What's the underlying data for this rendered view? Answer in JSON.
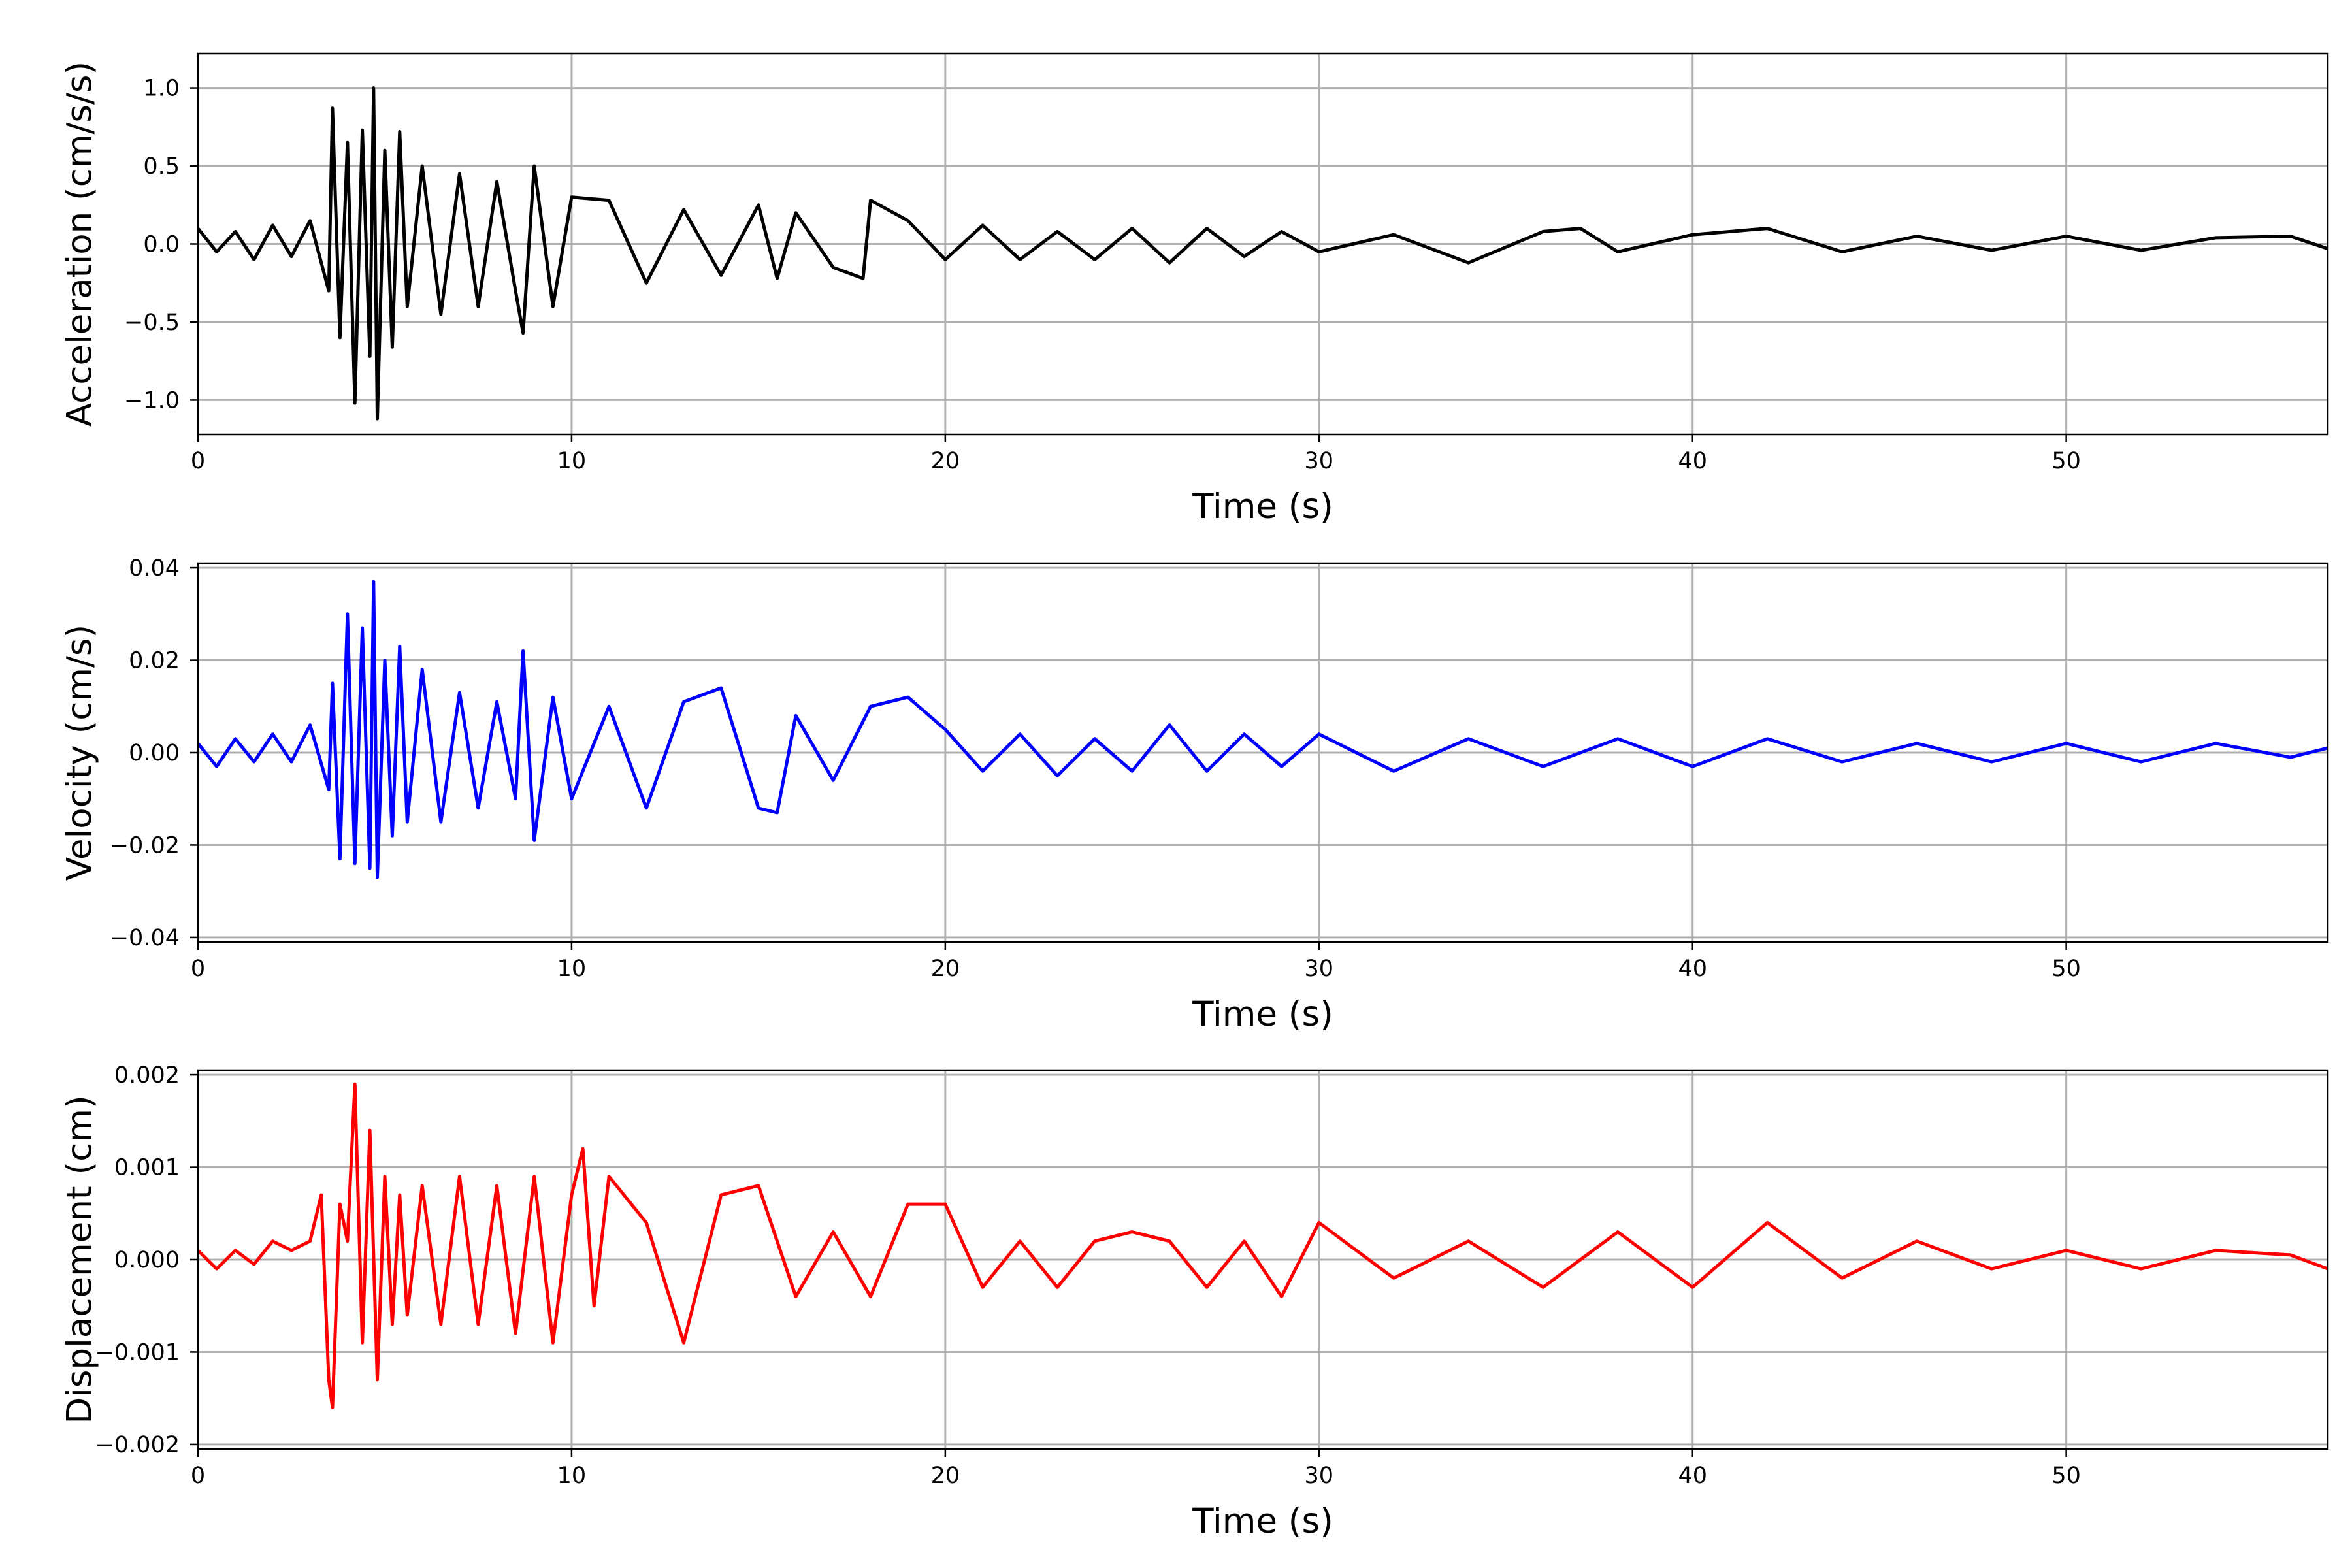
{
  "chart_data": [
    {
      "type": "line",
      "title": "",
      "xlabel": "Time (s)",
      "ylabel": "Acceleration (cm/s/s)",
      "xlim": [
        0,
        57
      ],
      "ylim": [
        -1.22,
        1.22
      ],
      "xticks": [
        0,
        10,
        20,
        30,
        40,
        50
      ],
      "xtick_labels": [
        "0",
        "10",
        "20",
        "30",
        "40",
        "50"
      ],
      "yticks": [
        -1.0,
        -0.5,
        0.0,
        0.5,
        1.0
      ],
      "ytick_labels": [
        "−1.0",
        "−0.5",
        "0.0",
        "0.5",
        "1.0"
      ],
      "grid": true,
      "color": "#000000",
      "series": [
        {
          "x": [
            0,
            0.5,
            1,
            1.5,
            2,
            2.5,
            3,
            3.5,
            3.6,
            3.8,
            4,
            4.2,
            4.4,
            4.6,
            4.7,
            4.8,
            5,
            5.2,
            5.4,
            5.6,
            6,
            6.5,
            7,
            7.5,
            8,
            8.5,
            8.7,
            9,
            9.5,
            10,
            11,
            12,
            13,
            14,
            15,
            15.5,
            16,
            17,
            17.8,
            18,
            19,
            20,
            21,
            22,
            23,
            24,
            25,
            26,
            27,
            28,
            29,
            30,
            32,
            34,
            36,
            37,
            38,
            40,
            42,
            44,
            46,
            48,
            50,
            52,
            54,
            56,
            57
          ],
          "y": [
            0.1,
            -0.05,
            0.08,
            -0.1,
            0.12,
            -0.08,
            0.15,
            -0.3,
            0.87,
            -0.6,
            0.65,
            -1.02,
            0.73,
            -0.72,
            1.0,
            -1.12,
            0.6,
            -0.66,
            0.72,
            -0.4,
            0.5,
            -0.45,
            0.45,
            -0.4,
            0.4,
            -0.3,
            -0.57,
            0.5,
            -0.4,
            0.3,
            0.28,
            -0.25,
            0.22,
            -0.2,
            0.25,
            -0.22,
            0.2,
            -0.15,
            -0.22,
            0.28,
            0.15,
            -0.1,
            0.12,
            -0.1,
            0.08,
            -0.1,
            0.1,
            -0.12,
            0.1,
            -0.08,
            0.08,
            -0.05,
            0.06,
            -0.12,
            0.08,
            0.1,
            -0.05,
            0.06,
            0.1,
            -0.05,
            0.05,
            -0.04,
            0.05,
            -0.04,
            0.04,
            0.05,
            -0.03
          ]
        }
      ]
    },
    {
      "type": "line",
      "title": "",
      "xlabel": "Time (s)",
      "ylabel": "Velocity (cm/s)",
      "xlim": [
        0,
        57
      ],
      "ylim": [
        -0.041,
        0.041
      ],
      "xticks": [
        0,
        10,
        20,
        30,
        40,
        50
      ],
      "xtick_labels": [
        "0",
        "10",
        "20",
        "30",
        "40",
        "50"
      ],
      "yticks": [
        -0.04,
        -0.02,
        0.0,
        0.02,
        0.04
      ],
      "ytick_labels": [
        "−0.04",
        "−0.02",
        "0.00",
        "0.02",
        "0.04"
      ],
      "grid": true,
      "color": "#0000ff",
      "series": [
        {
          "x": [
            0,
            0.5,
            1,
            1.5,
            2,
            2.5,
            3,
            3.5,
            3.6,
            3.8,
            4,
            4.2,
            4.4,
            4.6,
            4.7,
            4.8,
            5,
            5.2,
            5.4,
            5.6,
            6,
            6.5,
            7,
            7.5,
            8,
            8.5,
            8.7,
            9,
            9.5,
            10,
            11,
            12,
            13,
            14,
            15,
            15.5,
            16,
            17,
            18,
            19,
            20,
            21,
            22,
            23,
            24,
            25,
            26,
            27,
            28,
            29,
            30,
            32,
            34,
            36,
            38,
            40,
            42,
            44,
            46,
            48,
            50,
            52,
            54,
            56,
            57
          ],
          "y": [
            0.002,
            -0.003,
            0.003,
            -0.002,
            0.004,
            -0.002,
            0.006,
            -0.008,
            0.015,
            -0.023,
            0.03,
            -0.024,
            0.027,
            -0.025,
            0.037,
            -0.027,
            0.02,
            -0.018,
            0.023,
            -0.015,
            0.018,
            -0.015,
            0.013,
            -0.012,
            0.011,
            -0.01,
            0.022,
            -0.019,
            0.012,
            -0.01,
            0.01,
            -0.012,
            0.011,
            0.014,
            -0.012,
            -0.013,
            0.008,
            -0.006,
            0.01,
            0.012,
            0.005,
            -0.004,
            0.004,
            -0.005,
            0.003,
            -0.004,
            0.006,
            -0.004,
            0.004,
            -0.003,
            0.004,
            -0.004,
            0.003,
            -0.003,
            0.003,
            -0.003,
            0.003,
            -0.002,
            0.002,
            -0.002,
            0.002,
            -0.002,
            0.002,
            -0.001,
            0.001
          ]
        }
      ]
    },
    {
      "type": "line",
      "title": "",
      "xlabel": "Time (s)",
      "ylabel": "Displacement (cm)",
      "xlim": [
        0,
        57
      ],
      "ylim": [
        -0.00205,
        0.00205
      ],
      "xticks": [
        0,
        10,
        20,
        30,
        40,
        50
      ],
      "xtick_labels": [
        "0",
        "10",
        "20",
        "30",
        "40",
        "50"
      ],
      "yticks": [
        -0.002,
        -0.001,
        0.0,
        0.001,
        0.002
      ],
      "ytick_labels": [
        "−0.002",
        "−0.001",
        "0.000",
        "0.001",
        "0.002"
      ],
      "grid": true,
      "color": "#ff0000",
      "series": [
        {
          "x": [
            0,
            0.5,
            1,
            1.5,
            2,
            2.5,
            3,
            3.3,
            3.5,
            3.6,
            3.8,
            4,
            4.2,
            4.4,
            4.6,
            4.8,
            5,
            5.2,
            5.4,
            5.6,
            6,
            6.5,
            7,
            7.5,
            8,
            8.5,
            9,
            9.5,
            10,
            10.3,
            10.6,
            11,
            12,
            13,
            14,
            15,
            16,
            17,
            18,
            19,
            20,
            21,
            22,
            23,
            24,
            25,
            26,
            27,
            28,
            29,
            30,
            32,
            34,
            36,
            38,
            40,
            42,
            44,
            46,
            48,
            50,
            52,
            54,
            56,
            57
          ],
          "y": [
            0.0001,
            -0.0001,
            0.0001,
            -5e-05,
            0.0002,
            0.0001,
            0.0002,
            0.0007,
            -0.0013,
            -0.0016,
            0.0006,
            0.0002,
            0.0019,
            -0.0009,
            0.0014,
            -0.0013,
            0.0009,
            -0.0007,
            0.0007,
            -0.0006,
            0.0008,
            -0.0007,
            0.0009,
            -0.0007,
            0.0008,
            -0.0008,
            0.0009,
            -0.0009,
            0.0007,
            0.0012,
            -0.0005,
            0.0009,
            0.0004,
            -0.0009,
            0.0007,
            0.0008,
            -0.0004,
            0.0003,
            -0.0004,
            0.0006,
            0.0006,
            -0.0003,
            0.0002,
            -0.0003,
            0.0002,
            0.0003,
            0.0002,
            -0.0003,
            0.0002,
            -0.0004,
            0.0004,
            -0.0002,
            0.0002,
            -0.0003,
            0.0003,
            -0.0003,
            0.0004,
            -0.0002,
            0.0002,
            -0.0001,
            0.0001,
            -0.0001,
            0.0001,
            5e-05,
            -0.0001
          ]
        }
      ]
    }
  ]
}
